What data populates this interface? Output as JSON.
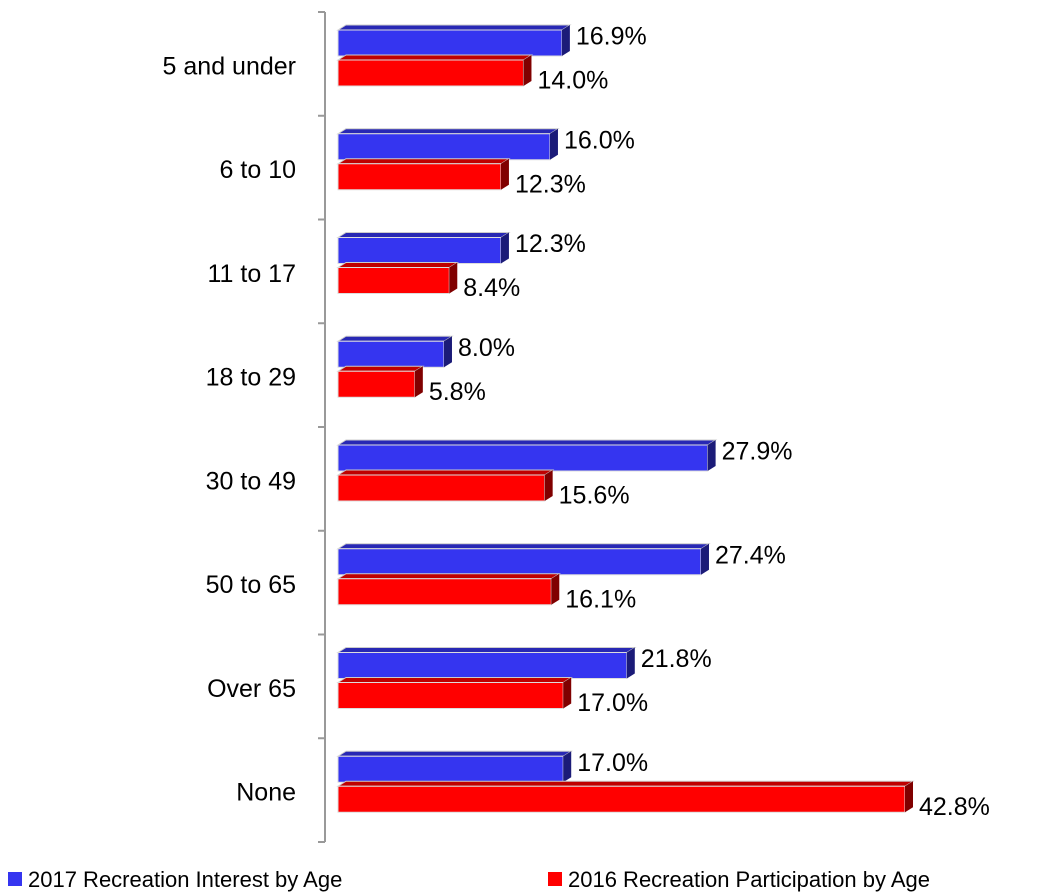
{
  "chart_data": {
    "type": "hbar",
    "categories": [
      "5 and under",
      "6 to 10",
      "11 to 17",
      "18 to 29",
      "30 to 49",
      "50 to 65",
      "Over 65",
      "None"
    ],
    "series": [
      {
        "name": "2017 Recreation Interest by Age",
        "color": "#3535f0",
        "values": [
          16.9,
          16.0,
          12.3,
          8.0,
          27.9,
          27.4,
          21.8,
          17.0
        ],
        "value_labels": [
          "16.9%",
          "16.0%",
          "12.3%",
          "8.0%",
          "27.9%",
          "27.4%",
          "21.8%",
          "17.0%"
        ]
      },
      {
        "name": "2016 Recreation Participation by Age",
        "color": "#ff0000",
        "values": [
          14.0,
          12.3,
          8.4,
          5.8,
          15.6,
          16.1,
          17.0,
          42.8
        ],
        "value_labels": [
          "14.0%",
          "12.3%",
          "8.4%",
          "5.8%",
          "15.6%",
          "16.1%",
          "17.0%",
          "42.8%"
        ]
      }
    ],
    "legend": "bottom"
  }
}
